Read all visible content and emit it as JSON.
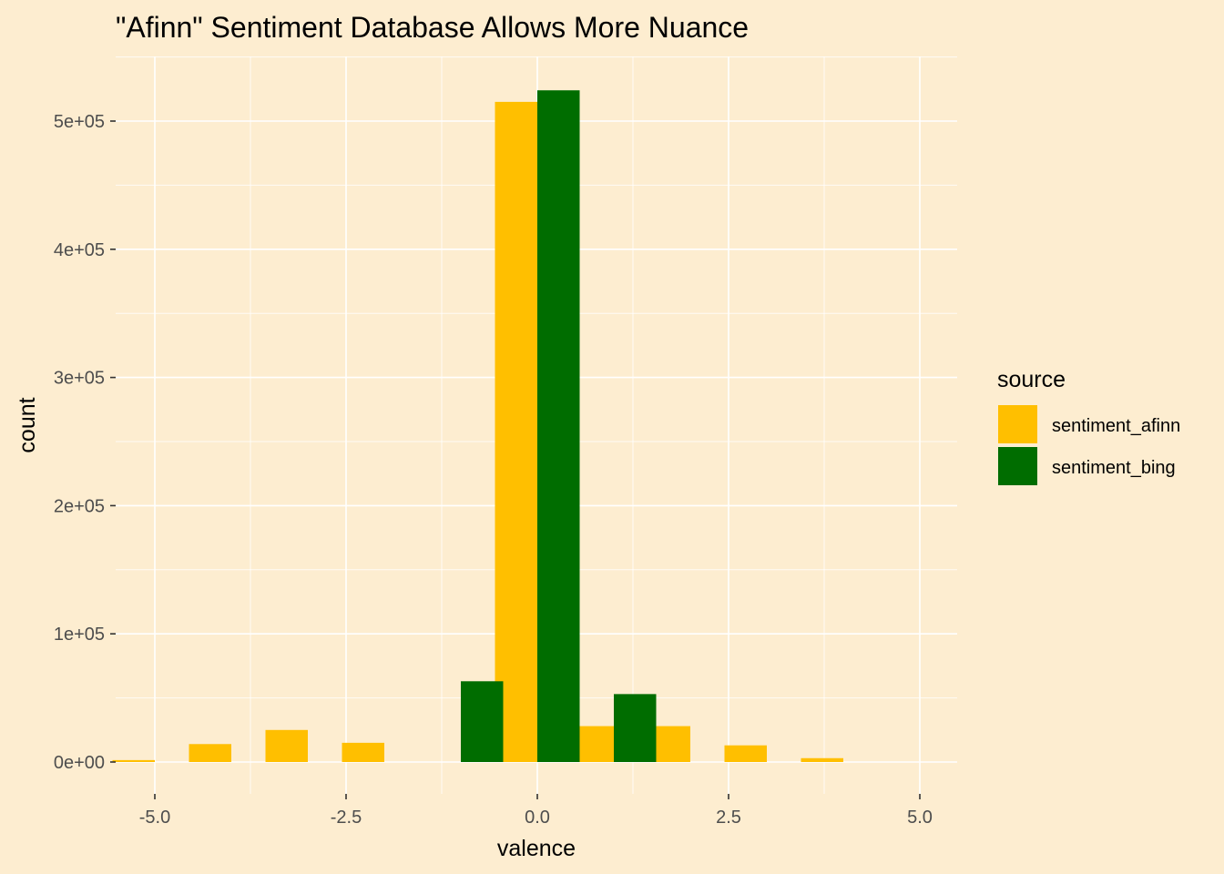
{
  "chart_data": {
    "type": "bar",
    "title": "\"Afinn\" Sentiment Database Allows More Nuance",
    "xlabel": "valence",
    "ylabel": "count",
    "xlim": [
      -5.0,
      5.0
    ],
    "ylim": [
      0,
      500000
    ],
    "x_ticks": [
      -5.0,
      -2.5,
      0.0,
      2.5,
      5.0
    ],
    "x_tick_labels": [
      "-5.0",
      "-2.5",
      "0.0",
      "2.5",
      "5.0"
    ],
    "y_ticks": [
      0,
      100000,
      200000,
      300000,
      400000,
      500000
    ],
    "y_tick_labels": [
      "0e+00",
      "1e+05",
      "2e+05",
      "3e+05",
      "4e+05",
      "5e+05"
    ],
    "grid": true,
    "legend_position": "right",
    "legend_title": "source",
    "series": [
      {
        "name": "sentiment_afinn",
        "color": "#FFBF00",
        "x": [
          -5,
          -4,
          -3,
          -2,
          -1,
          0,
          1,
          2,
          3,
          4
        ],
        "values": [
          1500,
          14000,
          25000,
          15000,
          0,
          515000,
          28000,
          28000,
          13000,
          3000
        ]
      },
      {
        "name": "sentiment_bing",
        "color": "#006D00",
        "x": [
          -1,
          0,
          1
        ],
        "values": [
          63000,
          524000,
          53000
        ]
      }
    ]
  }
}
